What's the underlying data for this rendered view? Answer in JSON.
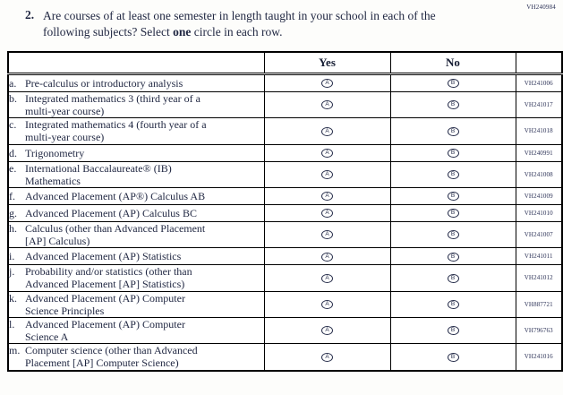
{
  "page": {
    "form_code_top": "VH240984"
  },
  "question": {
    "number": "2.",
    "text_before_bold": "Are courses of at least one semester in length taught in your school in each of the\nfollowing subjects? Select ",
    "bold_word": "one",
    "text_after_bold": " circle in each row."
  },
  "table": {
    "header": {
      "yes": "Yes",
      "no": "No"
    },
    "bubbles": {
      "yes_letter": "A",
      "no_letter": "B"
    },
    "rows": [
      {
        "letter": "a.",
        "text": "Pre-calculus or introductory analysis",
        "code": "VH241006"
      },
      {
        "letter": "b.",
        "text": "Integrated mathematics 3 (third year of a\nmulti-year course)",
        "code": "VH241017"
      },
      {
        "letter": "c.",
        "text": "Integrated mathematics 4 (fourth year of a\nmulti-year course)",
        "code": "VH241018"
      },
      {
        "letter": "d.",
        "text": "Trigonometry",
        "code": "VH240991"
      },
      {
        "letter": "e.",
        "text": "International Baccalaureate® (IB)\nMathematics",
        "code": "VH241008"
      },
      {
        "letter": "f.",
        "text": "Advanced Placement (AP®) Calculus AB",
        "code": "VH241009"
      },
      {
        "letter": "g.",
        "text": "Advanced Placement (AP) Calculus BC",
        "code": "VH241010"
      },
      {
        "letter": "h.",
        "text": "Calculus (other than Advanced Placement\n[AP] Calculus)",
        "code": "VH241007"
      },
      {
        "letter": "i.",
        "text": "Advanced Placement (AP) Statistics",
        "code": "VH241011"
      },
      {
        "letter": "j.",
        "text": "Probability and/or statistics (other than\nAdvanced Placement [AP] Statistics)",
        "code": "VH241012"
      },
      {
        "letter": "k.",
        "text": "Advanced Placement (AP) Computer\nScience Principles",
        "code": "VH887721"
      },
      {
        "letter": "l.",
        "text": "Advanced Placement (AP) Computer\nScience A",
        "code": "VH796763"
      },
      {
        "letter": "m.",
        "text": "Computer science (other than Advanced\nPlacement [AP] Computer Science)",
        "code": "VH241016"
      }
    ]
  }
}
